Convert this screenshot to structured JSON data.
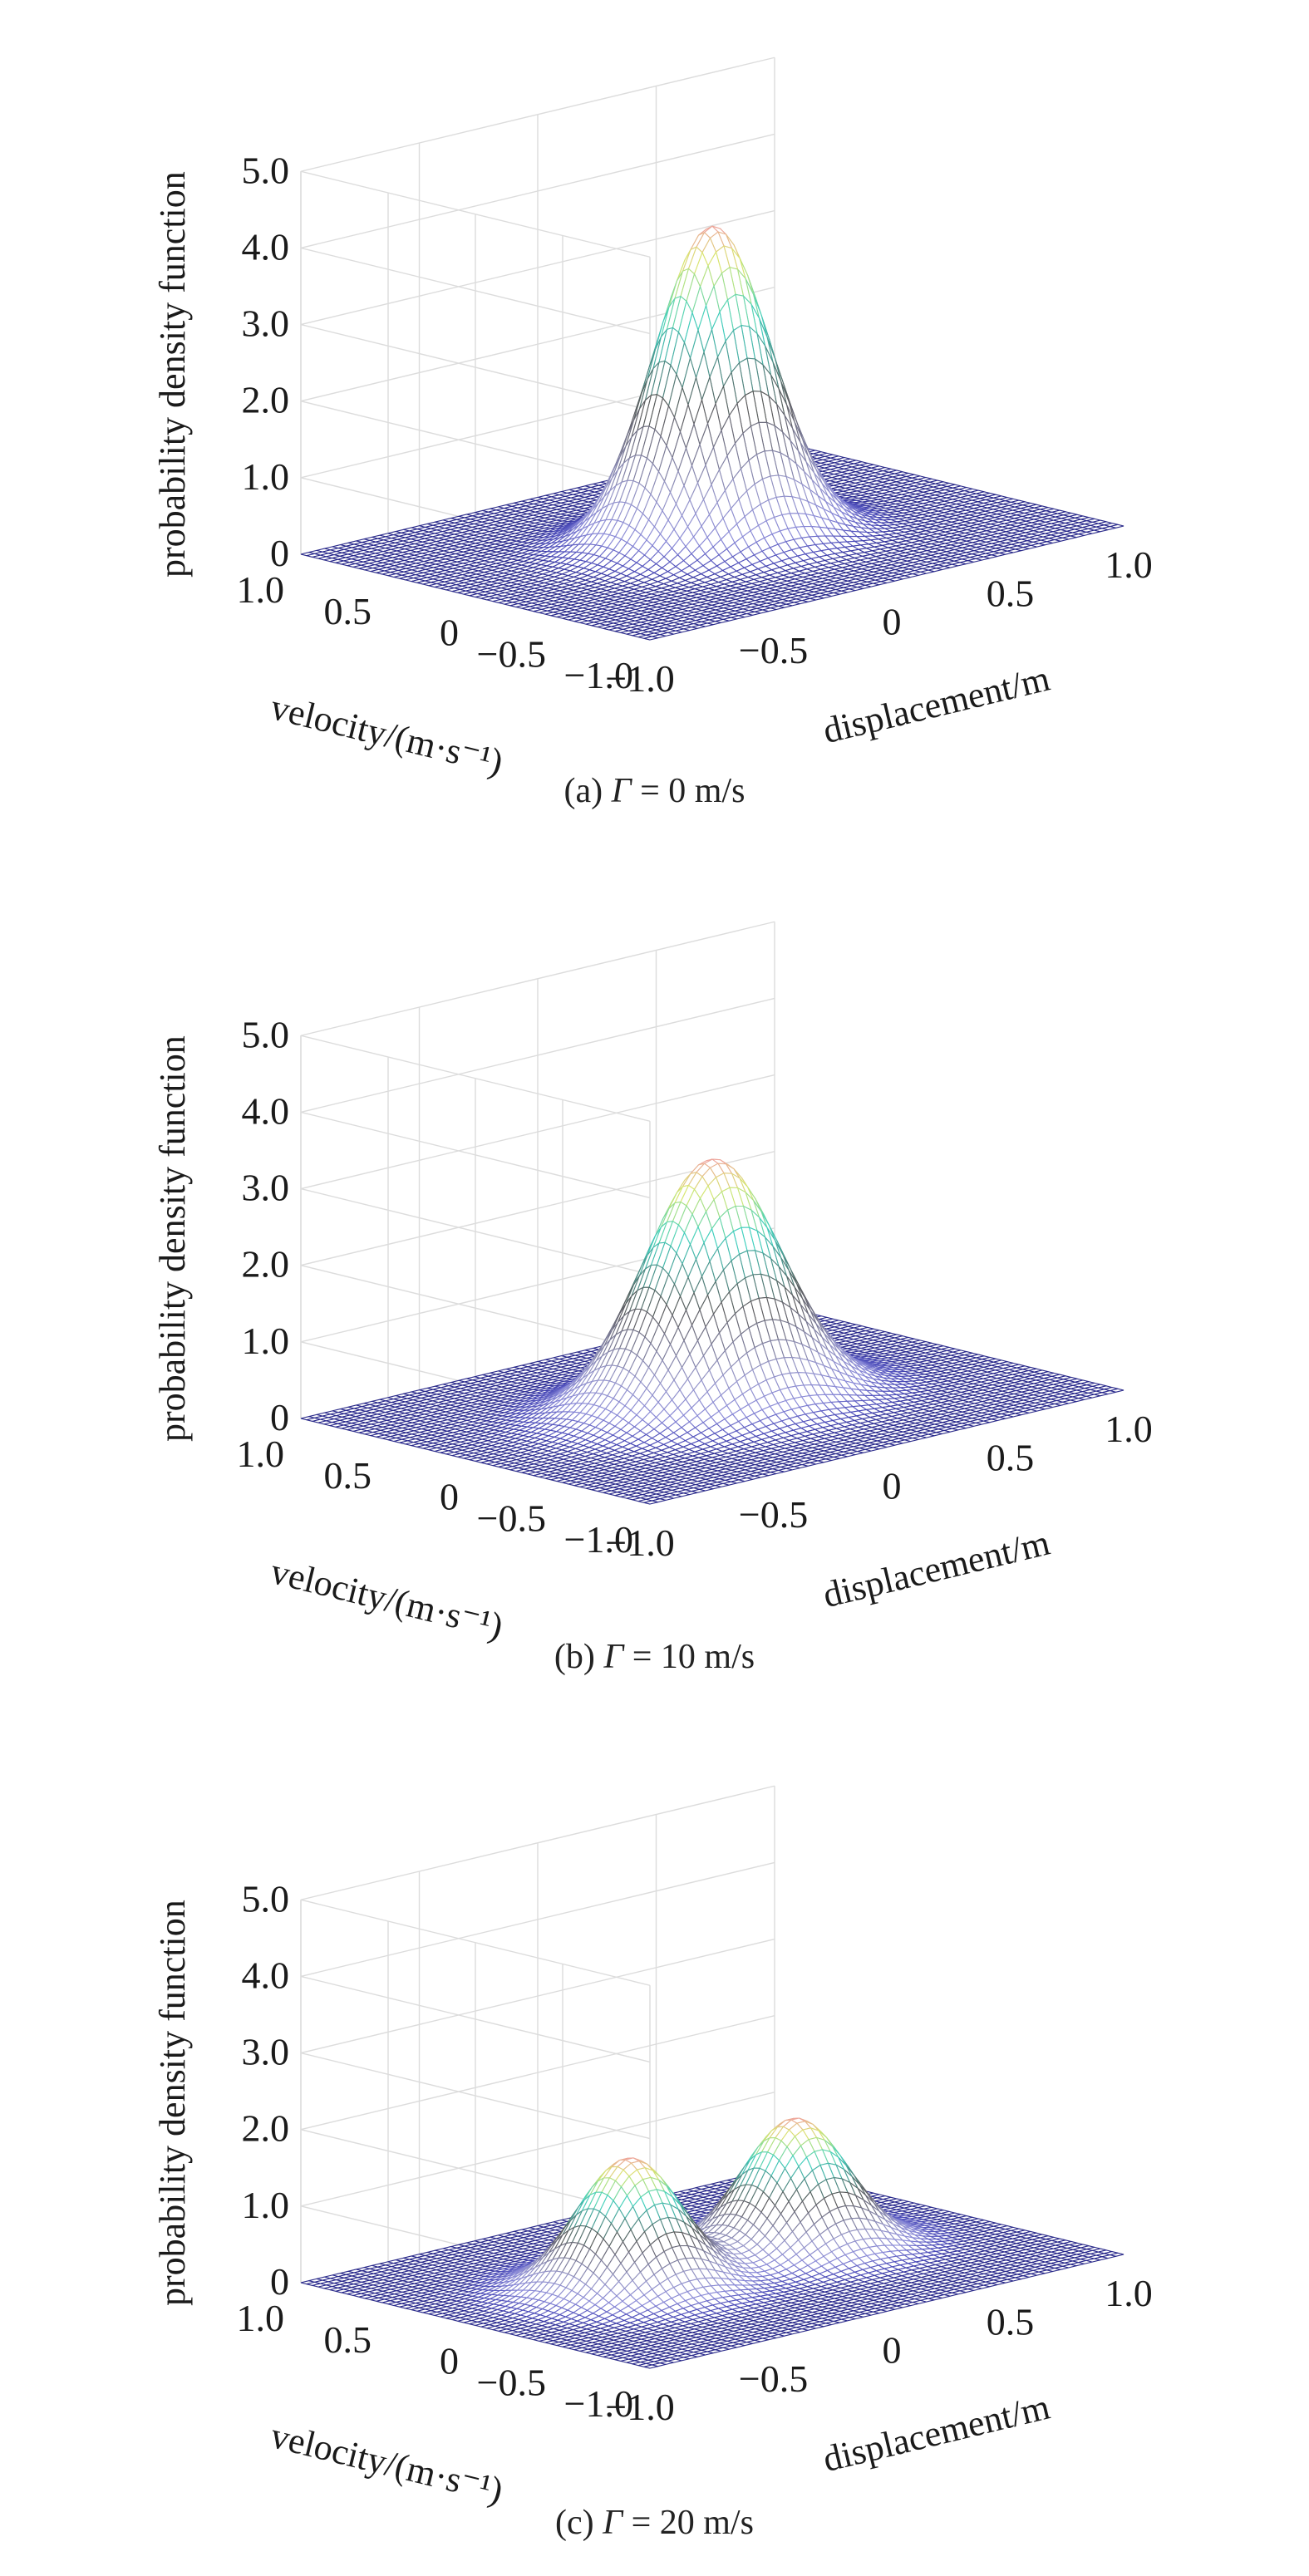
{
  "chart_data": [
    {
      "type": "surface",
      "caption_prefix": "(a) ",
      "caption_symbol": "Γ",
      "caption_suffix": " = 0 m/s",
      "xlabel": "displacement/m",
      "ylabel": "velocity/(m·s⁻¹)",
      "zlabel": "probability density function",
      "xlim": [
        -1.0,
        1.0
      ],
      "ylim": [
        -1.0,
        1.0
      ],
      "zlim": [
        0,
        5.0
      ],
      "xticks": [
        "−1.0",
        "−0.5",
        "0",
        "0.5",
        "1.0"
      ],
      "yticks": [
        "−1.0",
        "−0.5",
        "0",
        "0.5",
        "1.0"
      ],
      "zticks": [
        "0",
        "1.0",
        "2.0",
        "3.0",
        "4.0",
        "5.0"
      ],
      "grid": true,
      "colormap": [
        "#2a2a8c",
        "#4a4ab8",
        "#8a8ad8",
        "#ffffff",
        "#d8d8d8",
        "#40d0c0",
        "#d8e870",
        "#f0a0a0"
      ],
      "peaks": [
        {
          "x": 0.0,
          "y": 0.0,
          "height": 4.1,
          "sigma_x": 0.2,
          "sigma_y": 0.2
        }
      ]
    },
    {
      "type": "surface",
      "caption_prefix": "(b) ",
      "caption_symbol": "Γ",
      "caption_suffix": " = 10 m/s",
      "xlabel": "displacement/m",
      "ylabel": "velocity/(m·s⁻¹)",
      "zlabel": "probability density function",
      "xlim": [
        -1.0,
        1.0
      ],
      "ylim": [
        -1.0,
        1.0
      ],
      "zlim": [
        0,
        5.0
      ],
      "xticks": [
        "−1.0",
        "−0.5",
        "0",
        "0.5",
        "1.0"
      ],
      "yticks": [
        "−1.0",
        "−0.5",
        "0",
        "0.5",
        "1.0"
      ],
      "zticks": [
        "0",
        "1.0",
        "2.0",
        "3.0",
        "4.0",
        "5.0"
      ],
      "grid": true,
      "colormap": [
        "#2a2a8c",
        "#4a4ab8",
        "#8a8ad8",
        "#ffffff",
        "#d8d8d8",
        "#40d0c0",
        "#d8e870",
        "#f0a0a0"
      ],
      "peaks": [
        {
          "x": 0.0,
          "y": 0.0,
          "height": 3.2,
          "sigma_x": 0.24,
          "sigma_y": 0.22
        }
      ]
    },
    {
      "type": "surface",
      "caption_prefix": "(c) ",
      "caption_symbol": "Γ",
      "caption_suffix": " = 20 m/s",
      "xlabel": "displacement/m",
      "ylabel": "velocity/(m·s⁻¹)",
      "zlabel": "probability density function",
      "xlim": [
        -1.0,
        1.0
      ],
      "ylim": [
        -1.0,
        1.0
      ],
      "zlim": [
        0,
        5.0
      ],
      "xticks": [
        "−1.0",
        "−0.5",
        "0",
        "0.5",
        "1.0"
      ],
      "yticks": [
        "−1.0",
        "−0.5",
        "0",
        "0.5",
        "1.0"
      ],
      "zticks": [
        "0",
        "1.0",
        "2.0",
        "3.0",
        "4.0",
        "5.0"
      ],
      "grid": true,
      "colormap": [
        "#2a2a8c",
        "#4a4ab8",
        "#8a8ad8",
        "#ffffff",
        "#d8d8d8",
        "#40d0c0",
        "#d8e870",
        "#f0a0a0"
      ],
      "peaks": [
        {
          "x": -0.35,
          "y": 0.0,
          "height": 1.7,
          "sigma_x": 0.17,
          "sigma_y": 0.2
        },
        {
          "x": 0.35,
          "y": 0.0,
          "height": 1.7,
          "sigma_x": 0.17,
          "sigma_y": 0.2
        }
      ]
    }
  ]
}
